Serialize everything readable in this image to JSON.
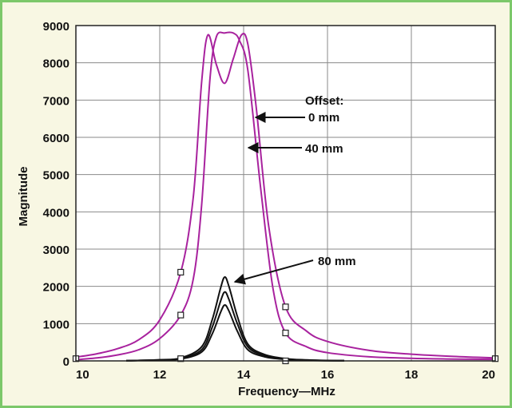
{
  "chart_data": {
    "type": "line",
    "xlabel": "Frequency—MHz",
    "ylabel": "Magnitude",
    "xlim": [
      10,
      20
    ],
    "ylim": [
      0,
      9000
    ],
    "x_ticks": [
      "10",
      "12",
      "14",
      "16",
      "18",
      "20"
    ],
    "y_ticks": [
      "0",
      "1000",
      "2000",
      "3000",
      "4000",
      "5000",
      "6000",
      "7000",
      "8000",
      "9000"
    ],
    "grid": true,
    "annotations": [
      {
        "text": "Offset:",
        "points_to": "curve-0mm"
      },
      {
        "text": "0 mm",
        "points_to": "curve-0mm"
      },
      {
        "text": "40 mm",
        "points_to": "curve-40mm"
      },
      {
        "text": "80 mm",
        "points_to": "curve-80mm"
      }
    ],
    "series": [
      {
        "color": "#a8229e",
        "x": [
          10,
          10.5,
          11,
          11.5,
          12,
          12.5,
          12.8,
          13.0,
          13.15,
          13.35,
          13.55,
          13.75,
          13.95,
          14.1,
          14.3,
          14.6,
          15,
          15.5,
          16,
          17,
          18,
          19,
          20
        ],
        "y": [
          100,
          190,
          330,
          570,
          1100,
          2380,
          4400,
          7500,
          8750,
          7950,
          7450,
          8100,
          8750,
          8500,
          6800,
          3600,
          1450,
          800,
          520,
          280,
          180,
          120,
          80
        ]
      },
      {
        "color": "#a8229e",
        "x": [
          10,
          10.5,
          11,
          11.5,
          12,
          12.5,
          12.8,
          13.0,
          13.2,
          13.35,
          13.55,
          13.75,
          13.9,
          14.1,
          14.4,
          14.7,
          15,
          15.5,
          16,
          17,
          18,
          19,
          20
        ],
        "y": [
          30,
          80,
          160,
          300,
          600,
          1230,
          2200,
          4200,
          7600,
          8700,
          8800,
          8800,
          8600,
          7800,
          4700,
          1950,
          750,
          380,
          220,
          110,
          70,
          50,
          40
        ]
      },
      {
        "color": "#111111",
        "x": [
          11.2,
          12,
          12.5,
          13,
          13.25,
          13.45,
          13.55,
          13.65,
          13.85,
          14.1,
          14.5,
          15,
          15.5,
          16,
          16.4
        ],
        "y": [
          5,
          30,
          80,
          380,
          1100,
          1950,
          2250,
          2000,
          1200,
          450,
          170,
          60,
          25,
          10,
          5
        ]
      },
      {
        "color": "#111111",
        "x": [
          11.2,
          12,
          12.5,
          13,
          13.25,
          13.45,
          13.55,
          13.65,
          13.85,
          14.1,
          14.5,
          15,
          15.5,
          16,
          16.4
        ],
        "y": [
          5,
          25,
          65,
          300,
          900,
          1600,
          1850,
          1650,
          1000,
          380,
          140,
          50,
          20,
          8,
          5
        ]
      },
      {
        "color": "#111111",
        "x": [
          11.2,
          12,
          12.5,
          13,
          13.25,
          13.45,
          13.55,
          13.65,
          13.85,
          14.1,
          14.5,
          15,
          15.5,
          16,
          16.4
        ],
        "y": [
          5,
          20,
          50,
          240,
          720,
          1300,
          1500,
          1340,
          800,
          300,
          110,
          40,
          15,
          6,
          5
        ]
      }
    ],
    "markers": [
      {
        "x": 10,
        "y": 60
      },
      {
        "x": 12.5,
        "y": 2380
      },
      {
        "x": 12.5,
        "y": 1230
      },
      {
        "x": 12.5,
        "y": 60
      },
      {
        "x": 15,
        "y": 1450
      },
      {
        "x": 15,
        "y": 750
      },
      {
        "x": 15,
        "y": 0
      },
      {
        "x": 20,
        "y": 60
      }
    ]
  }
}
